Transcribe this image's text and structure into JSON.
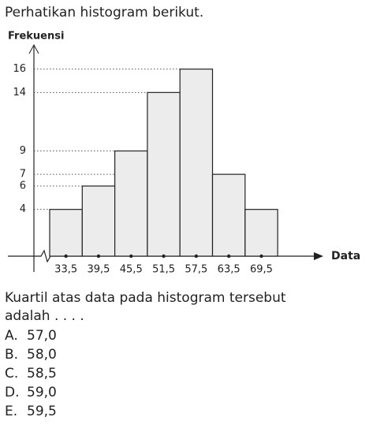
{
  "intro": "Perhatikan histogram berikut.",
  "chart_data": {
    "type": "histogram",
    "y_label": "Frekuensi",
    "x_label": "Data",
    "categories": [
      "33,5",
      "39,5",
      "45,5",
      "51,5",
      "57,5",
      "63,5",
      "69,5"
    ],
    "values": [
      4,
      6,
      9,
      14,
      16,
      7,
      4
    ],
    "color": "#ececec",
    "ylim": [
      0,
      18
    ],
    "yticks": [
      4,
      6,
      7,
      9,
      14,
      16
    ],
    "grid": true
  },
  "question_lines": [
    "Kuartil atas data pada histogram tersebut",
    "adalah . . . ."
  ],
  "options": [
    {
      "letter": "A.",
      "text": "57,0"
    },
    {
      "letter": "B.",
      "text": "58,0"
    },
    {
      "letter": "C.",
      "text": "58,5"
    },
    {
      "letter": "D.",
      "text": "59,0"
    },
    {
      "letter": "E.",
      "text": "59,5"
    }
  ]
}
